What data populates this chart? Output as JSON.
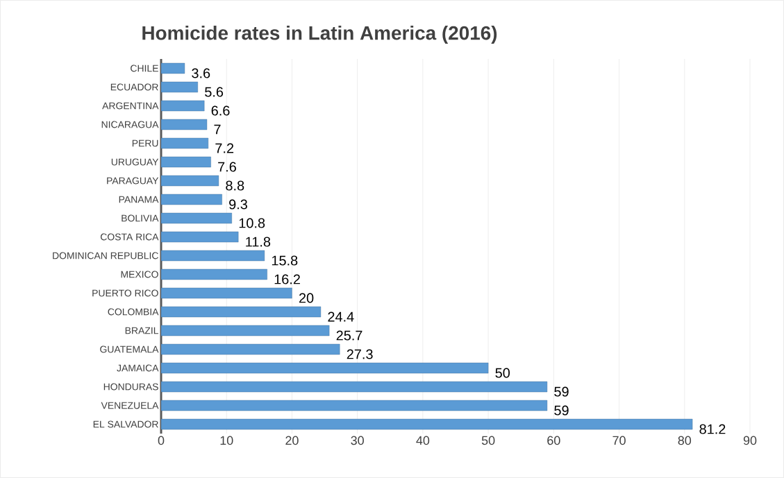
{
  "chart_data": {
    "type": "bar",
    "orientation": "horizontal",
    "title": "Homicide rates in Latin America (2016)",
    "categories": [
      "CHILE",
      "ECUADOR",
      "ARGENTINA",
      "NICARAGUA",
      "PERU",
      "URUGUAY",
      "PARAGUAY",
      "PANAMA",
      "BOLIVIA",
      "COSTA RICA",
      "DOMINICAN REPUBLIC",
      "MEXICO",
      "PUERTO RICO",
      "COLOMBIA",
      "BRAZIL",
      "GUATEMALA",
      "JAMAICA",
      "HONDURAS",
      "VENEZUELA",
      "EL SALVADOR"
    ],
    "values": [
      3.6,
      5.6,
      6.6,
      7,
      7.2,
      7.6,
      8.8,
      9.3,
      10.8,
      11.8,
      15.8,
      16.2,
      20,
      24.4,
      25.7,
      27.3,
      50,
      59,
      59,
      81.2
    ],
    "color": "#5b9bd5",
    "xlim": [
      0,
      90
    ],
    "xticks": [
      0,
      10,
      20,
      30,
      40,
      50,
      60,
      70,
      80,
      90
    ],
    "grid": "x",
    "data_labels": true
  }
}
